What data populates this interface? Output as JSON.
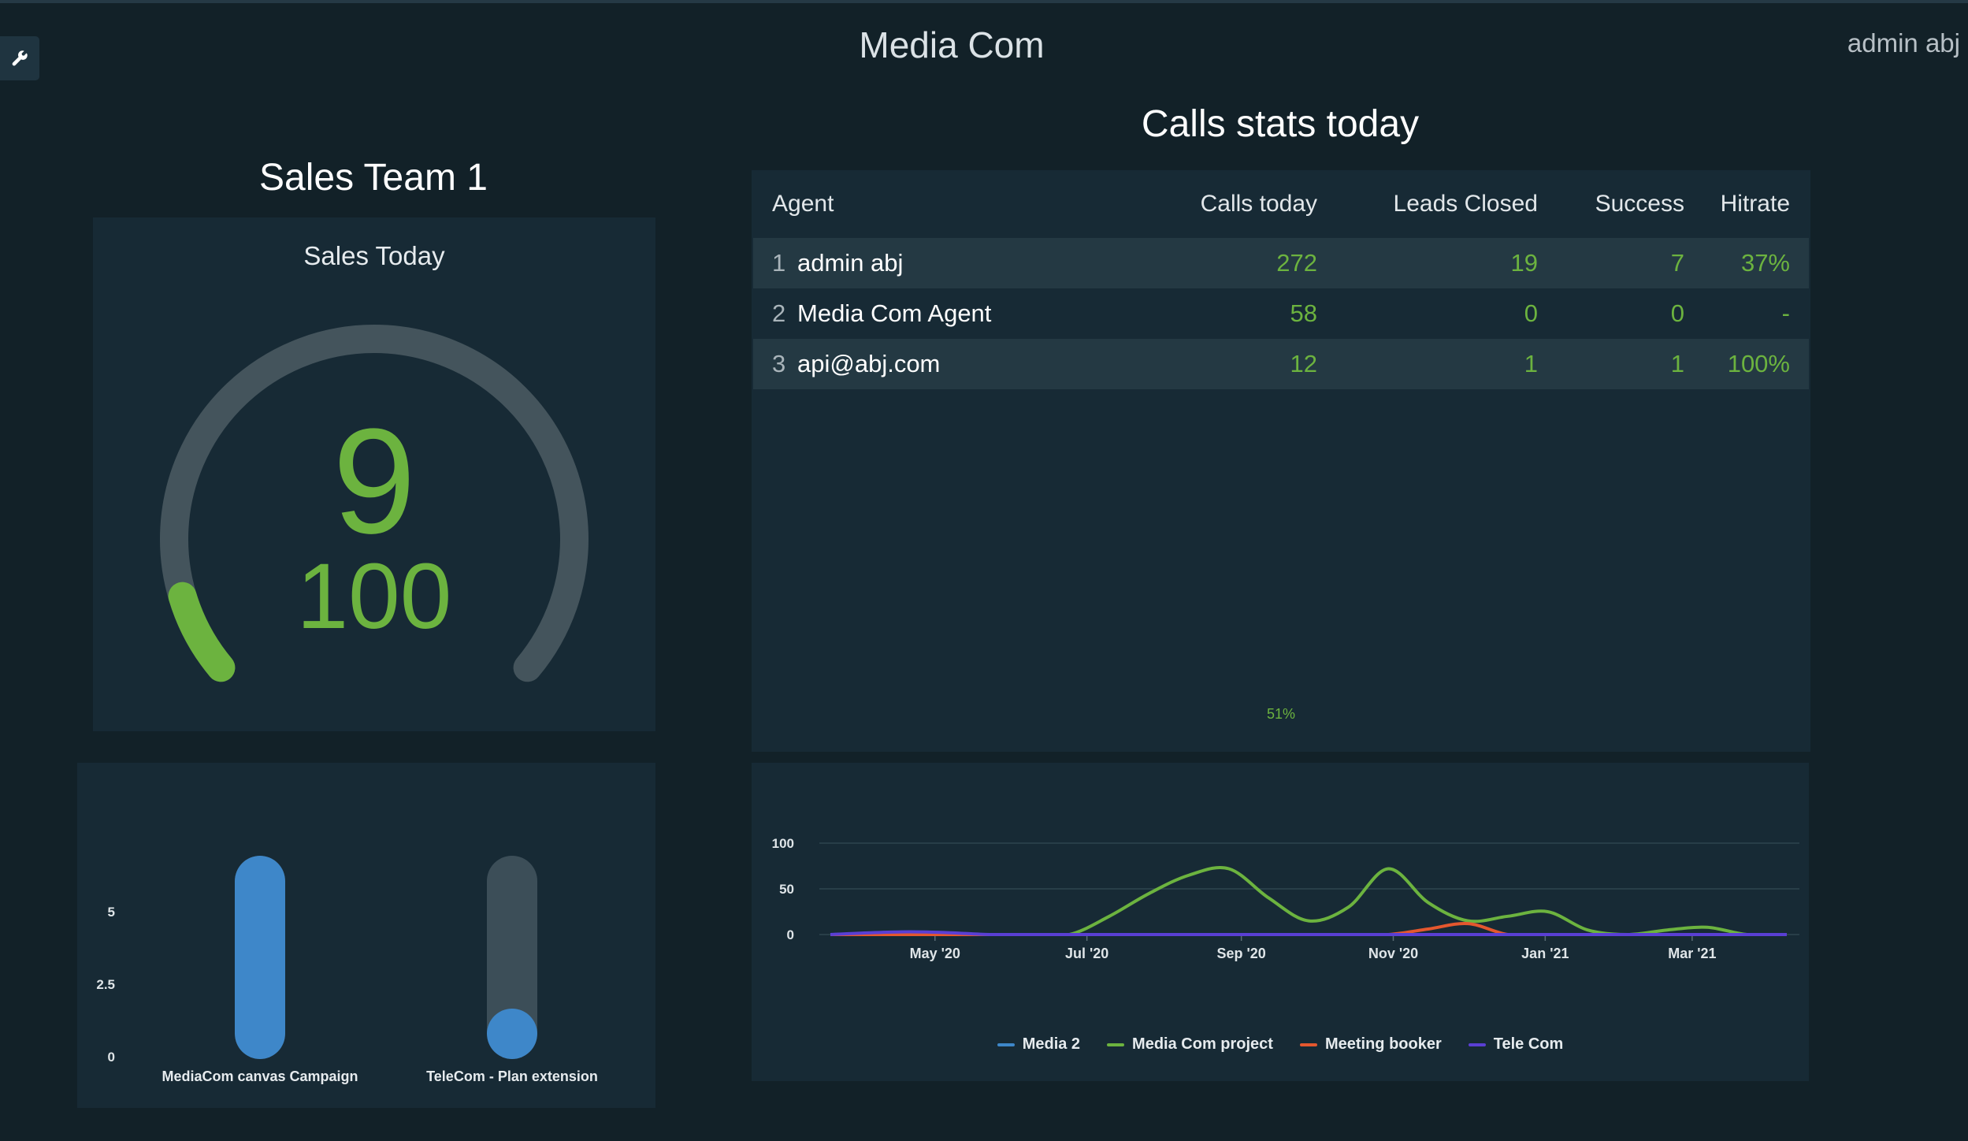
{
  "header": {
    "app_title": "Media Com",
    "user_name": "admin abj",
    "settings_icon": "wrench-icon"
  },
  "team": {
    "title": "Sales Team 1",
    "gauge": {
      "caption": "Sales Today",
      "value": "9",
      "max": "100",
      "fraction": 0.09,
      "color": "#6cb33f",
      "track_color": "#44545c"
    }
  },
  "calls": {
    "title": "Calls stats today",
    "columns": [
      "Agent",
      "Calls today",
      "Leads Closed",
      "Success",
      "Hitrate"
    ],
    "rows": [
      {
        "rank": "1",
        "agent": "admin abj",
        "calls": "272",
        "leads": "19",
        "success": "7",
        "hitrate": "37%"
      },
      {
        "rank": "2",
        "agent": "Media Com Agent",
        "calls": "58",
        "leads": "0",
        "success": "0",
        "hitrate": "-"
      },
      {
        "rank": "3",
        "agent": "api@abj.com",
        "calls": "12",
        "leads": "1",
        "success": "1",
        "hitrate": "100%"
      }
    ],
    "footer_value": "51%"
  },
  "chart_data": [
    {
      "type": "bar",
      "categories": [
        "MediaCom canvas Campaign",
        "TeleCom - Plan extension"
      ],
      "values": [
        7,
        1.2
      ],
      "ylim": [
        0,
        7
      ],
      "yticks": [
        "0",
        "2.5",
        "5"
      ],
      "colors": {
        "bar": "#3e87c9",
        "track": "#3c4e58"
      }
    },
    {
      "type": "line",
      "x": [
        "2020-03-20",
        "2020-04-05",
        "2020-04-21",
        "2020-05-07",
        "2020-05-23",
        "2020-06-08",
        "2020-06-24",
        "2020-07-10",
        "2020-07-26",
        "2020-08-11",
        "2020-08-27",
        "2020-09-12",
        "2020-09-28",
        "2020-10-14",
        "2020-10-30",
        "2020-11-15",
        "2020-12-01",
        "2020-12-17",
        "2021-01-02",
        "2021-01-18",
        "2021-02-03",
        "2021-02-19",
        "2021-03-07",
        "2021-03-23",
        "2021-04-08"
      ],
      "xticks": [
        "May '20",
        "Jul '20",
        "Sep '20",
        "Nov '20",
        "Jan '21",
        "Mar '21"
      ],
      "xtick_dates": [
        "2020-05-01",
        "2020-07-01",
        "2020-09-01",
        "2020-11-01",
        "2021-01-01",
        "2021-03-01"
      ],
      "ylim": [
        0,
        100
      ],
      "yticks": [
        "0",
        "50",
        "100"
      ],
      "grid": true,
      "legend_position": "bottom",
      "series": [
        {
          "name": "Media 2",
          "color": "#3e87c9",
          "values": [
            0,
            0,
            0,
            0,
            0,
            0,
            0,
            0,
            0,
            0,
            0,
            0,
            0,
            0,
            0,
            0,
            0,
            0,
            0,
            0,
            0,
            0,
            0,
            0,
            0
          ]
        },
        {
          "name": "Media Com project",
          "color": "#6cb33f",
          "values": [
            0,
            0,
            0,
            0,
            0,
            0,
            0,
            20,
            45,
            65,
            72,
            40,
            15,
            30,
            72,
            35,
            15,
            20,
            25,
            5,
            0,
            5,
            8,
            0,
            0
          ]
        },
        {
          "name": "Meeting booker",
          "color": "#e4572e",
          "values": [
            0,
            0,
            0,
            0,
            0,
            0,
            0,
            0,
            0,
            0,
            0,
            0,
            0,
            0,
            0,
            6,
            12,
            0,
            0,
            0,
            0,
            0,
            0,
            0,
            0
          ]
        },
        {
          "name": "Tele Com",
          "color": "#5a3fd4",
          "values": [
            0,
            2,
            3,
            2,
            0,
            0,
            0,
            0,
            0,
            0,
            0,
            0,
            0,
            0,
            0,
            0,
            0,
            0,
            0,
            0,
            0,
            0,
            0,
            0,
            0
          ]
        }
      ]
    }
  ]
}
